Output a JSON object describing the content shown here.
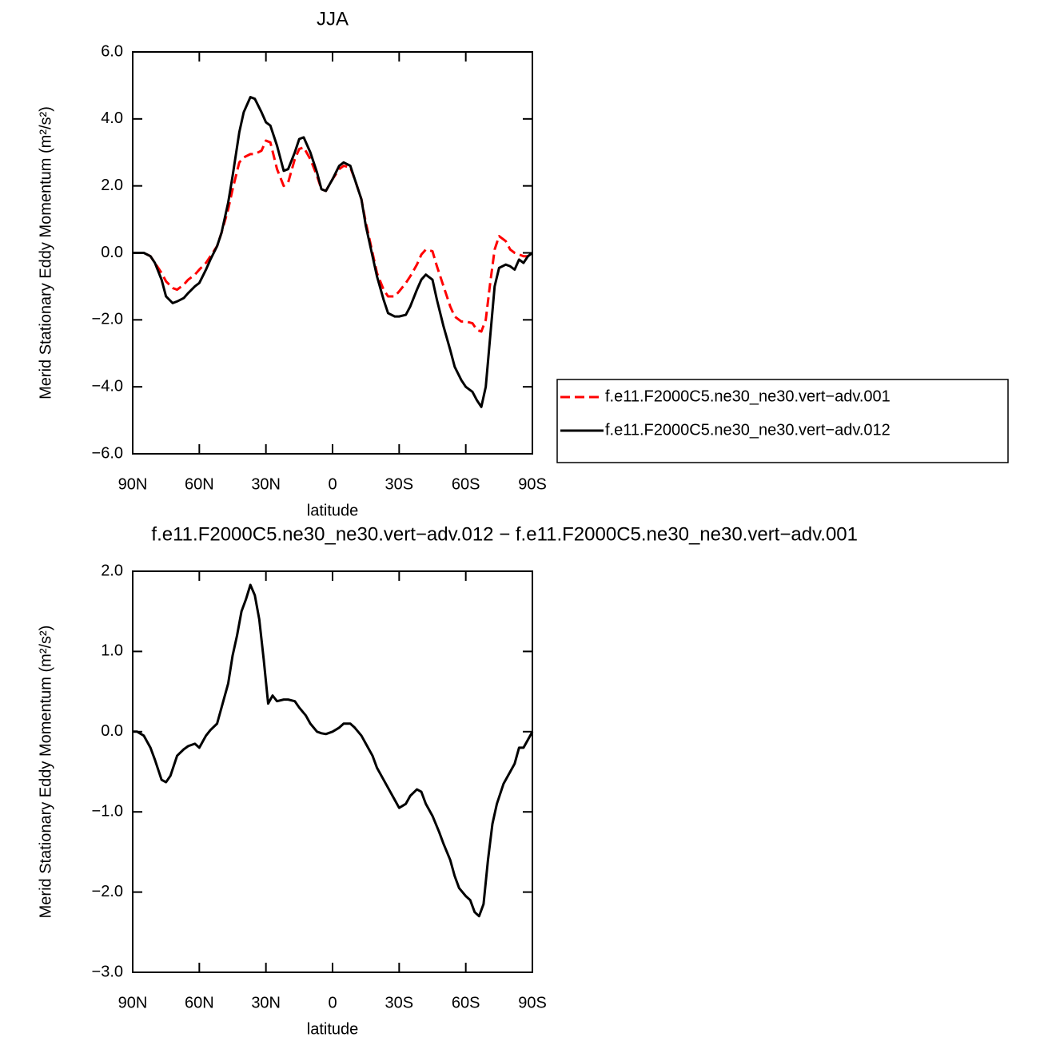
{
  "chart_data": [
    {
      "type": "line",
      "title": "JJA",
      "xlabel": "latitude",
      "ylabel": "Merid Stationary Eddy Momentum (m²/s²)",
      "xlim": [
        90,
        -90
      ],
      "xticks": [
        {
          "value": 90,
          "label": "90N"
        },
        {
          "value": 60,
          "label": "60N"
        },
        {
          "value": 30,
          "label": "30N"
        },
        0,
        {
          "value": -30,
          "label": "30S"
        },
        {
          "value": -60,
          "label": "60S"
        },
        {
          "value": -90,
          "label": "90S"
        }
      ],
      "ylim": [
        -6,
        6
      ],
      "yticks": [
        {
          "value": -6,
          "label": "−6.0"
        },
        {
          "value": -4,
          "label": "−4.0"
        },
        {
          "value": -2,
          "label": "−2.0"
        },
        {
          "value": 0,
          "label": "0.0"
        },
        {
          "value": 2,
          "label": "2.0"
        },
        {
          "value": 4,
          "label": "4.0"
        },
        {
          "value": 6,
          "label": "6.0"
        }
      ],
      "x": [
        90,
        85,
        82,
        80,
        77,
        75,
        72,
        70,
        67,
        65,
        62,
        60,
        57,
        55,
        52,
        50,
        47,
        45,
        42,
        40,
        37,
        35,
        32,
        30,
        28,
        25,
        22,
        20,
        17,
        15,
        13,
        10,
        7,
        5,
        3,
        0,
        -3,
        -5,
        -8,
        -10,
        -13,
        -15,
        -18,
        -20,
        -23,
        -25,
        -28,
        -30,
        -33,
        -35,
        -38,
        -40,
        -42,
        -45,
        -47,
        -50,
        -53,
        -55,
        -58,
        -60,
        -63,
        -65,
        -67,
        -69,
        -71,
        -73,
        -75,
        -78,
        -80,
        -82,
        -84,
        -86,
        -88,
        -90
      ],
      "series": [
        {
          "name": "f.e11.F2000C5.ne30_ne30.vert−adv.001",
          "color": "#ff0000",
          "linestyle": "dashed",
          "values": [
            0,
            0,
            -0.1,
            -0.3,
            -0.6,
            -0.85,
            -1.05,
            -1.1,
            -0.95,
            -0.8,
            -0.65,
            -0.5,
            -0.3,
            -0.1,
            0.2,
            0.6,
            1.3,
            1.9,
            2.7,
            2.85,
            2.95,
            2.95,
            3.05,
            3.35,
            3.3,
            2.5,
            2.0,
            2.1,
            2.8,
            3.1,
            3.15,
            2.8,
            2.3,
            1.9,
            1.85,
            2.2,
            2.5,
            2.6,
            2.55,
            2.2,
            1.6,
            0.9,
            0.0,
            -0.6,
            -1.1,
            -1.3,
            -1.3,
            -1.15,
            -0.9,
            -0.7,
            -0.35,
            -0.05,
            0.1,
            0.05,
            -0.4,
            -1.0,
            -1.6,
            -1.9,
            -2.05,
            -2.05,
            -2.1,
            -2.3,
            -2.35,
            -2.0,
            -0.9,
            0.1,
            0.5,
            0.35,
            0.1,
            0.0,
            -0.05,
            -0.1,
            -0.1,
            0
          ]
        },
        {
          "name": "f.e11.F2000C5.ne30_ne30.vert−adv.012",
          "color": "#000000",
          "linestyle": "solid",
          "values": [
            0,
            0,
            -0.1,
            -0.3,
            -0.8,
            -1.3,
            -1.5,
            -1.45,
            -1.35,
            -1.2,
            -1.0,
            -0.9,
            -0.5,
            -0.2,
            0.2,
            0.6,
            1.5,
            2.3,
            3.6,
            4.2,
            4.65,
            4.6,
            4.2,
            3.9,
            3.8,
            3.2,
            2.45,
            2.5,
            3.0,
            3.4,
            3.45,
            3.0,
            2.4,
            1.9,
            1.85,
            2.2,
            2.6,
            2.7,
            2.6,
            2.2,
            1.6,
            0.8,
            -0.1,
            -0.7,
            -1.4,
            -1.8,
            -1.9,
            -1.9,
            -1.85,
            -1.6,
            -1.1,
            -0.8,
            -0.65,
            -0.8,
            -1.4,
            -2.2,
            -2.9,
            -3.4,
            -3.8,
            -4.0,
            -4.15,
            -4.4,
            -4.6,
            -4.0,
            -2.5,
            -1.0,
            -0.45,
            -0.35,
            -0.4,
            -0.5,
            -0.2,
            -0.3,
            -0.1,
            0
          ]
        }
      ]
    },
    {
      "type": "line",
      "title": "f.e11.F2000C5.ne30_ne30.vert−adv.012 − f.e11.F2000C5.ne30_ne30.vert−adv.001",
      "xlabel": "latitude",
      "ylabel": "Merid Stationary Eddy Momentum (m²/s²)",
      "xlim": [
        90,
        -90
      ],
      "xticks": [
        {
          "value": 90,
          "label": "90N"
        },
        {
          "value": 60,
          "label": "60N"
        },
        {
          "value": 30,
          "label": "30N"
        },
        0,
        {
          "value": -30,
          "label": "30S"
        },
        {
          "value": -60,
          "label": "60S"
        },
        {
          "value": -90,
          "label": "90S"
        }
      ],
      "ylim": [
        -3,
        2
      ],
      "yticks": [
        {
          "value": -3,
          "label": "−3.0"
        },
        {
          "value": -2,
          "label": "−2.0"
        },
        {
          "value": -1,
          "label": "−1.0"
        },
        {
          "value": 0,
          "label": "0.0"
        },
        {
          "value": 1,
          "label": "1.0"
        },
        {
          "value": 2,
          "label": "2.0"
        }
      ],
      "x": [
        90,
        88,
        85,
        82,
        80,
        77,
        75,
        73,
        70,
        67,
        65,
        62,
        60,
        57,
        55,
        52,
        50,
        47,
        45,
        43,
        41,
        39,
        37,
        35,
        33,
        31,
        29,
        27,
        25,
        22,
        20,
        17,
        15,
        12,
        10,
        7,
        5,
        3,
        0,
        -3,
        -5,
        -8,
        -10,
        -13,
        -15,
        -18,
        -20,
        -23,
        -25,
        -28,
        -30,
        -33,
        -35,
        -38,
        -40,
        -42,
        -45,
        -48,
        -50,
        -53,
        -55,
        -57,
        -60,
        -62,
        -64,
        -66,
        -68,
        -70,
        -72,
        -74,
        -77,
        -80,
        -82,
        -84,
        -86,
        -88,
        -90
      ],
      "series": [
        {
          "color": "#000000",
          "linestyle": "solid",
          "values": [
            0,
            0,
            -0.05,
            -0.2,
            -0.35,
            -0.6,
            -0.63,
            -0.55,
            -0.3,
            -0.22,
            -0.18,
            -0.15,
            -0.2,
            -0.05,
            0.02,
            0.1,
            0.3,
            0.6,
            0.95,
            1.2,
            1.5,
            1.65,
            1.83,
            1.7,
            1.4,
            0.9,
            0.35,
            0.45,
            0.38,
            0.4,
            0.4,
            0.38,
            0.3,
            0.2,
            0.1,
            0.0,
            -0.02,
            -0.03,
            0.0,
            0.05,
            0.1,
            0.1,
            0.05,
            -0.05,
            -0.15,
            -0.3,
            -0.45,
            -0.6,
            -0.7,
            -0.85,
            -0.95,
            -0.9,
            -0.8,
            -0.72,
            -0.75,
            -0.9,
            -1.05,
            -1.25,
            -1.4,
            -1.6,
            -1.8,
            -1.95,
            -2.05,
            -2.1,
            -2.25,
            -2.3,
            -2.15,
            -1.6,
            -1.15,
            -0.9,
            -0.65,
            -0.5,
            -0.4,
            -0.2,
            -0.2,
            -0.1,
            0
          ]
        }
      ]
    }
  ]
}
